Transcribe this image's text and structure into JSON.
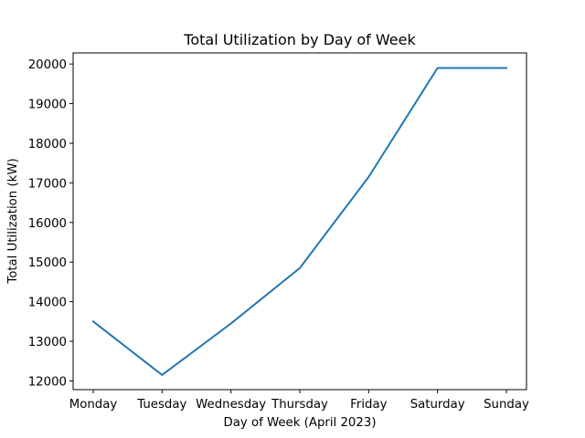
{
  "chart_data": {
    "type": "line",
    "title": "Total Utilization by Day of Week",
    "xlabel": "Day of Week (April 2023)",
    "ylabel": "Total Utilization (kW)",
    "categories": [
      "Monday",
      "Tuesday",
      "Wednesday",
      "Thursday",
      "Friday",
      "Saturday",
      "Sunday"
    ],
    "series": [
      {
        "values": [
          13500,
          12150,
          13450,
          14850,
          17150,
          19900,
          19900
        ],
        "color": "#1f77b4"
      }
    ],
    "ylim": [
      11780,
      20280
    ],
    "yticks": [
      12000,
      13000,
      14000,
      15000,
      16000,
      17000,
      18000,
      19000,
      20000
    ],
    "grid": false,
    "legend": false
  }
}
